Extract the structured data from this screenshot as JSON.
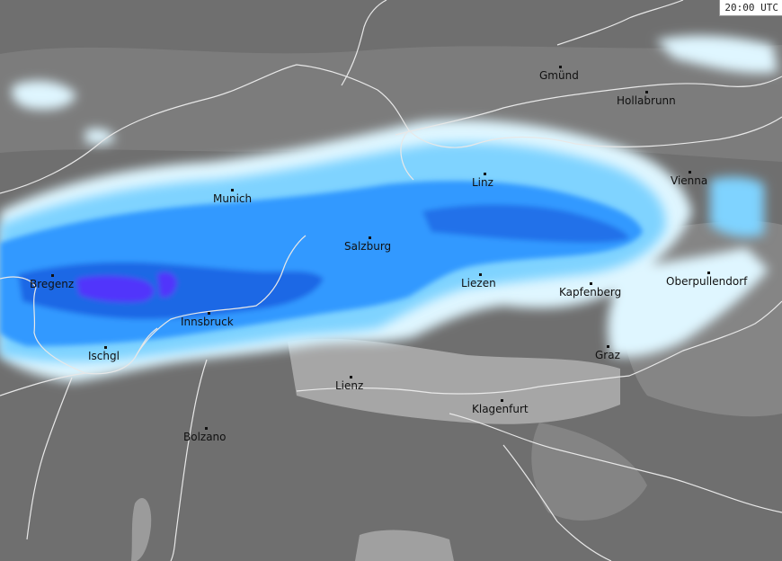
{
  "time_label": "20:00 UTC",
  "cities": [
    {
      "key": "gmund",
      "name": "Gmünd"
    },
    {
      "key": "hollabrunn",
      "name": "Hollabrunn"
    },
    {
      "key": "munich",
      "name": "Munich"
    },
    {
      "key": "linz",
      "name": "Linz"
    },
    {
      "key": "vienna",
      "name": "Vienna"
    },
    {
      "key": "salzburg",
      "name": "Salzburg"
    },
    {
      "key": "bregenz",
      "name": "Bregenz"
    },
    {
      "key": "liezen",
      "name": "Liezen"
    },
    {
      "key": "kapfenberg",
      "name": "Kapfenberg"
    },
    {
      "key": "oberpullendorf",
      "name": "Oberpullendorf"
    },
    {
      "key": "innsbruck",
      "name": "Innsbruck"
    },
    {
      "key": "ischgl",
      "name": "Ischgl"
    },
    {
      "key": "graz",
      "name": "Graz"
    },
    {
      "key": "lienz",
      "name": "Lienz"
    },
    {
      "key": "klagenfurt",
      "name": "Klagenfurt"
    },
    {
      "key": "bolzano",
      "name": "Bolzano"
    }
  ],
  "colors": {
    "background": "#6f6f6f",
    "low_terrain": "#8c8c8c",
    "valley": "#a4a4a4",
    "precip_very_light": "#dff6ff",
    "precip_light": "#7fd3ff",
    "precip_moderate": "#3399ff",
    "precip_heavy": "#1c5fe0",
    "precip_intense": "#5a2cff",
    "borders": "#e8e8e8"
  }
}
